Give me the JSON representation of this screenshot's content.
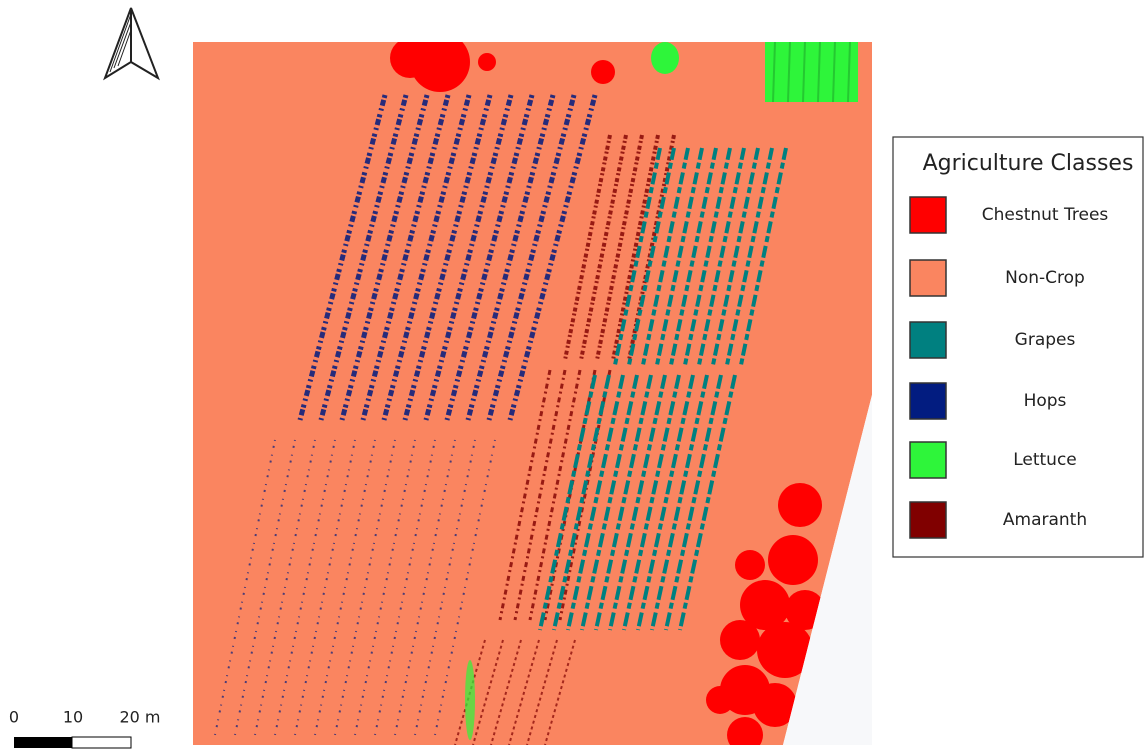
{
  "legend": {
    "title": "Agriculture Classes",
    "items": [
      {
        "label": "Chestnut Trees",
        "color": "#ff0000"
      },
      {
        "label": "Non-Crop",
        "color": "#fa8560"
      },
      {
        "label": "Grapes",
        "color": "#008080"
      },
      {
        "label": "Hops",
        "color": "#021c80"
      },
      {
        "label": "Lettuce",
        "color": "#2ef53a"
      },
      {
        "label": "Amaranth",
        "color": "#800000"
      }
    ]
  },
  "scale_bar": {
    "labels": [
      "0",
      "10",
      "20 m"
    ]
  }
}
